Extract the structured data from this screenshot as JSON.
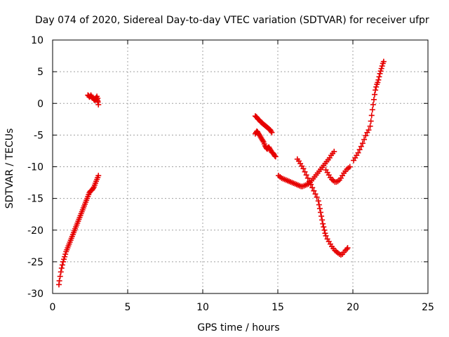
{
  "chart_data": {
    "type": "scatter",
    "title": "Day 074 of 2020, Sidereal Day-to-day VTEC variation (SDTVAR) for receiver ufpr",
    "xlabel": "GPS time / hours",
    "ylabel": "SDTVAR / TECUs",
    "xlim": [
      0,
      25
    ],
    "ylim": [
      -30,
      10
    ],
    "xticks": [
      "0",
      "5",
      "10",
      "15",
      "20",
      "25"
    ],
    "yticks": [
      "10",
      "5",
      "0",
      "-5",
      "-10",
      "-15",
      "-20",
      "-25",
      "-30"
    ],
    "grid": true,
    "marker": "plus",
    "color": "#e60000",
    "series": [
      {
        "segments": [
          [
            [
              0.42,
              -28.6
            ],
            [
              0.45,
              -28.0
            ],
            [
              0.5,
              -27.3
            ],
            [
              0.55,
              -26.6
            ],
            [
              0.6,
              -26.0
            ],
            [
              0.65,
              -25.5
            ],
            [
              0.7,
              -25.0
            ],
            [
              0.75,
              -24.6
            ],
            [
              0.8,
              -24.2
            ],
            [
              0.85,
              -23.8
            ],
            [
              0.9,
              -23.4
            ],
            [
              0.95,
              -23.1
            ],
            [
              1.0,
              -22.8
            ],
            [
              1.05,
              -22.5
            ],
            [
              1.1,
              -22.2
            ],
            [
              1.15,
              -21.9
            ],
            [
              1.2,
              -21.6
            ],
            [
              1.25,
              -21.3
            ],
            [
              1.3,
              -21.0
            ],
            [
              1.35,
              -20.7
            ],
            [
              1.4,
              -20.4
            ],
            [
              1.45,
              -20.1
            ],
            [
              1.5,
              -19.8
            ],
            [
              1.55,
              -19.5
            ],
            [
              1.6,
              -19.2
            ],
            [
              1.65,
              -18.9
            ],
            [
              1.7,
              -18.6
            ],
            [
              1.75,
              -18.3
            ],
            [
              1.8,
              -18.0
            ],
            [
              1.85,
              -17.7
            ],
            [
              1.9,
              -17.4
            ],
            [
              1.95,
              -17.1
            ],
            [
              2.0,
              -16.8
            ],
            [
              2.05,
              -16.5
            ],
            [
              2.1,
              -16.2
            ],
            [
              2.15,
              -15.9
            ],
            [
              2.2,
              -15.6
            ],
            [
              2.25,
              -15.3
            ],
            [
              2.3,
              -15.0
            ],
            [
              2.35,
              -14.7
            ],
            [
              2.4,
              -14.4
            ],
            [
              2.45,
              -14.1
            ],
            [
              2.5,
              -13.9
            ],
            [
              2.55,
              -13.8
            ],
            [
              2.6,
              -13.7
            ],
            [
              2.65,
              -13.6
            ],
            [
              2.7,
              -13.4
            ],
            [
              2.75,
              -13.2
            ],
            [
              2.8,
              -12.9
            ],
            [
              2.85,
              -12.6
            ],
            [
              2.9,
              -12.3
            ],
            [
              2.95,
              -12.0
            ],
            [
              3.0,
              -11.7
            ],
            [
              3.05,
              -11.4
            ]
          ],
          [
            [
              2.35,
              1.3
            ],
            [
              2.4,
              1.2
            ],
            [
              2.45,
              1.0
            ],
            [
              2.5,
              1.1
            ],
            [
              2.55,
              1.3
            ],
            [
              2.6,
              1.1
            ],
            [
              2.65,
              0.9
            ],
            [
              2.7,
              0.8
            ],
            [
              2.75,
              0.6
            ],
            [
              2.8,
              0.5
            ],
            [
              2.85,
              0.7
            ],
            [
              2.9,
              0.9
            ],
            [
              2.95,
              1.1
            ],
            [
              3.0,
              0.8
            ],
            [
              3.02,
              0.2
            ],
            [
              3.05,
              -0.2
            ],
            [
              3.0,
              0.4
            ],
            [
              2.95,
              0.6
            ]
          ],
          [
            [
              13.5,
              -4.8
            ],
            [
              13.55,
              -4.6
            ],
            [
              13.6,
              -4.4
            ],
            [
              13.65,
              -4.5
            ],
            [
              13.7,
              -4.7
            ],
            [
              13.75,
              -4.9
            ],
            [
              13.8,
              -5.1
            ],
            [
              13.85,
              -5.3
            ],
            [
              13.9,
              -5.5
            ],
            [
              13.95,
              -5.7
            ],
            [
              14.0,
              -5.9
            ],
            [
              14.05,
              -6.1
            ],
            [
              14.1,
              -6.4
            ],
            [
              14.15,
              -6.7
            ],
            [
              14.2,
              -6.9
            ],
            [
              14.25,
              -7.1
            ],
            [
              14.3,
              -7.2
            ],
            [
              14.35,
              -7.0
            ],
            [
              14.4,
              -6.9
            ],
            [
              14.45,
              -7.1
            ],
            [
              14.5,
              -7.3
            ],
            [
              14.55,
              -7.5
            ],
            [
              14.6,
              -7.7
            ],
            [
              14.65,
              -7.8
            ],
            [
              14.7,
              -7.9
            ],
            [
              14.75,
              -8.1
            ],
            [
              14.8,
              -8.3
            ],
            [
              14.85,
              -8.4
            ]
          ],
          [
            [
              13.5,
              -2.0
            ],
            [
              13.55,
              -2.1
            ],
            [
              13.6,
              -2.2
            ],
            [
              13.65,
              -2.4
            ],
            [
              13.7,
              -2.5
            ],
            [
              13.75,
              -2.6
            ],
            [
              13.8,
              -2.7
            ],
            [
              13.85,
              -2.9
            ],
            [
              13.9,
              -3.0
            ],
            [
              13.95,
              -3.1
            ],
            [
              14.0,
              -3.2
            ],
            [
              14.05,
              -3.3
            ],
            [
              14.1,
              -3.4
            ],
            [
              14.15,
              -3.5
            ],
            [
              14.2,
              -3.6
            ],
            [
              14.25,
              -3.7
            ],
            [
              14.3,
              -3.8
            ],
            [
              14.35,
              -3.9
            ],
            [
              14.4,
              -4.0
            ],
            [
              14.45,
              -4.1
            ],
            [
              14.5,
              -4.2
            ],
            [
              14.55,
              -4.4
            ],
            [
              14.6,
              -4.6
            ]
          ],
          [
            [
              15.05,
              -11.4
            ],
            [
              15.15,
              -11.6
            ],
            [
              15.25,
              -11.8
            ],
            [
              15.35,
              -11.9
            ],
            [
              15.45,
              -12.0
            ],
            [
              15.55,
              -12.1
            ],
            [
              15.65,
              -12.2
            ],
            [
              15.75,
              -12.3
            ],
            [
              15.85,
              -12.4
            ],
            [
              15.95,
              -12.5
            ],
            [
              16.05,
              -12.6
            ],
            [
              16.15,
              -12.7
            ],
            [
              16.25,
              -12.8
            ],
            [
              16.35,
              -12.9
            ],
            [
              16.45,
              -13.0
            ],
            [
              16.55,
              -13.1
            ],
            [
              16.65,
              -13.1
            ],
            [
              16.75,
              -13.0
            ],
            [
              16.85,
              -12.9
            ],
            [
              16.95,
              -12.8
            ],
            [
              17.05,
              -12.7
            ],
            [
              17.15,
              -12.5
            ],
            [
              17.25,
              -12.2
            ],
            [
              17.35,
              -11.9
            ],
            [
              17.45,
              -11.6
            ],
            [
              17.55,
              -11.3
            ],
            [
              17.65,
              -11.0
            ],
            [
              17.75,
              -10.7
            ],
            [
              17.85,
              -10.4
            ],
            [
              17.95,
              -10.1
            ],
            [
              18.05,
              -9.8
            ],
            [
              18.15,
              -9.5
            ],
            [
              18.25,
              -9.2
            ],
            [
              18.35,
              -8.9
            ],
            [
              18.45,
              -8.6
            ],
            [
              18.55,
              -8.2
            ],
            [
              18.65,
              -7.9
            ],
            [
              18.75,
              -7.6
            ]
          ],
          [
            [
              16.3,
              -8.8
            ],
            [
              16.4,
              -9.1
            ],
            [
              16.5,
              -9.5
            ],
            [
              16.6,
              -9.9
            ],
            [
              16.7,
              -10.3
            ],
            [
              16.8,
              -10.8
            ],
            [
              16.9,
              -11.3
            ],
            [
              17.0,
              -11.8
            ],
            [
              17.1,
              -12.3
            ],
            [
              17.2,
              -12.8
            ],
            [
              17.3,
              -13.3
            ],
            [
              17.4,
              -13.8
            ],
            [
              17.5,
              -14.3
            ],
            [
              17.6,
              -14.8
            ],
            [
              17.7,
              -15.4
            ],
            [
              17.75,
              -16.0
            ],
            [
              17.8,
              -16.6
            ],
            [
              17.85,
              -17.2
            ],
            [
              17.9,
              -17.8
            ],
            [
              17.95,
              -18.4
            ],
            [
              18.0,
              -19.0
            ],
            [
              18.05,
              -19.5
            ],
            [
              18.1,
              -20.0
            ],
            [
              18.15,
              -20.5
            ],
            [
              18.2,
              -20.9
            ],
            [
              18.3,
              -21.4
            ],
            [
              18.4,
              -21.8
            ],
            [
              18.5,
              -22.2
            ],
            [
              18.6,
              -22.6
            ],
            [
              18.7,
              -22.9
            ],
            [
              18.8,
              -23.2
            ],
            [
              18.9,
              -23.4
            ],
            [
              19.0,
              -23.6
            ],
            [
              19.1,
              -23.8
            ],
            [
              19.2,
              -23.9
            ],
            [
              19.3,
              -23.8
            ],
            [
              19.4,
              -23.5
            ],
            [
              19.5,
              -23.2
            ],
            [
              19.6,
              -23.0
            ],
            [
              19.65,
              -22.8
            ]
          ],
          [
            [
              18.2,
              -10.5
            ],
            [
              18.3,
              -10.9
            ],
            [
              18.4,
              -11.3
            ],
            [
              18.5,
              -11.7
            ],
            [
              18.6,
              -12.0
            ],
            [
              18.7,
              -12.2
            ],
            [
              18.8,
              -12.4
            ],
            [
              18.9,
              -12.4
            ],
            [
              19.0,
              -12.3
            ],
            [
              19.1,
              -12.1
            ],
            [
              19.2,
              -11.8
            ],
            [
              19.3,
              -11.4
            ],
            [
              19.4,
              -11.0
            ],
            [
              19.5,
              -10.7
            ],
            [
              19.6,
              -10.4
            ],
            [
              19.7,
              -10.2
            ],
            [
              19.8,
              -10.0
            ]
          ],
          [
            [
              20.05,
              -9.0
            ],
            [
              20.15,
              -8.6
            ],
            [
              20.25,
              -8.2
            ],
            [
              20.35,
              -7.8
            ],
            [
              20.45,
              -7.3
            ],
            [
              20.55,
              -6.8
            ],
            [
              20.65,
              -6.3
            ],
            [
              20.75,
              -5.7
            ],
            [
              20.85,
              -5.1
            ],
            [
              20.95,
              -4.6
            ],
            [
              21.05,
              -4.2
            ],
            [
              21.15,
              -3.6
            ],
            [
              21.2,
              -2.8
            ],
            [
              21.25,
              -1.9
            ],
            [
              21.3,
              -1.0
            ],
            [
              21.35,
              -0.2
            ],
            [
              21.4,
              0.6
            ],
            [
              21.45,
              1.4
            ],
            [
              21.5,
              2.1
            ],
            [
              21.55,
              2.6
            ],
            [
              21.6,
              3.0
            ],
            [
              21.65,
              3.3
            ],
            [
              21.7,
              3.7
            ],
            [
              21.75,
              4.2
            ],
            [
              21.8,
              4.7
            ],
            [
              21.85,
              5.1
            ],
            [
              21.9,
              5.5
            ],
            [
              21.95,
              5.9
            ],
            [
              22.0,
              6.3
            ],
            [
              22.05,
              6.6
            ]
          ]
        ]
      }
    ]
  }
}
